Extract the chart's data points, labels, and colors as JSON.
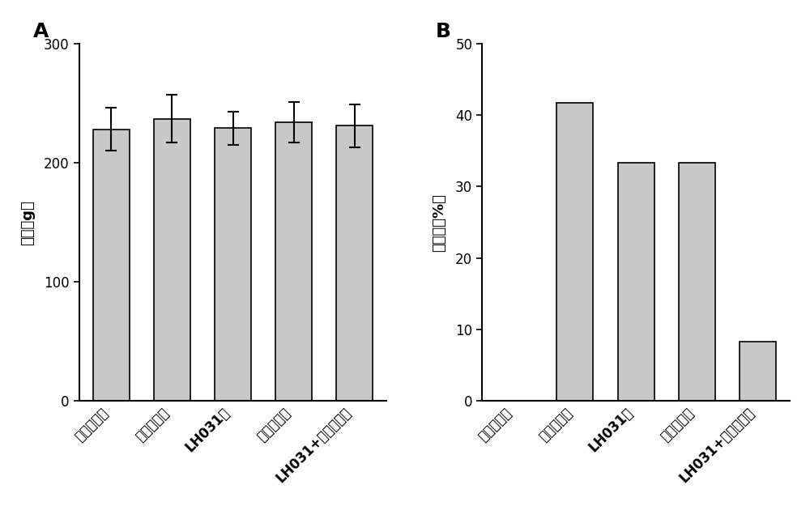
{
  "panel_A": {
    "label": "A",
    "categories": [
      "正常对照组",
      "模型对照组",
      "LH031组",
      "利多卡因组",
      "LH031+利多卡因组"
    ],
    "values": [
      228,
      237,
      229,
      234,
      231
    ],
    "errors": [
      18,
      20,
      14,
      17,
      18
    ],
    "ylabel": "体重（g）",
    "ylim": [
      0,
      300
    ],
    "yticks": [
      0,
      100,
      200,
      300
    ]
  },
  "panel_B": {
    "label": "B",
    "categories": [
      "正常对照组",
      "模型对照组",
      "LH031组",
      "利多卡因组",
      "LH031+利多卡因组"
    ],
    "values": [
      0,
      41.7,
      33.3,
      33.3,
      8.3
    ],
    "ylabel": "死亡率（%）",
    "ylim": [
      0,
      50
    ],
    "yticks": [
      0,
      10,
      20,
      30,
      40,
      50
    ]
  },
  "bar_color": "#c8c8c8",
  "bar_edgecolor": "#000000",
  "bar_width": 0.6,
  "tick_fontsize": 12,
  "ylabel_fontsize": 13,
  "panel_label_fontsize": 18,
  "background_color": "#ffffff",
  "spine_linewidth": 1.5,
  "errorbar_capsize": 5,
  "errorbar_linewidth": 1.5,
  "errorbar_capthick": 1.5
}
